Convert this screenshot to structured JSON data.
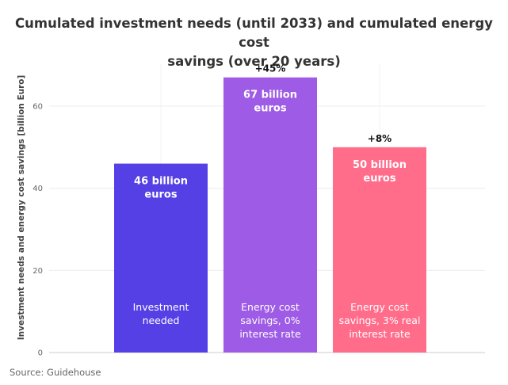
{
  "title_lines": [
    "Cumulated investment needs (until 2033) and cumulated energy cost",
    "savings (over 20 years)"
  ],
  "source": "Source: Guidehouse",
  "chart_data": {
    "type": "bar",
    "title": "Cumulated investment needs (until 2033) and cumulated energy cost savings (over 20 years)",
    "xlabel": "",
    "ylabel": "Investment needs and energy cost savings [billion Euro]",
    "ylim": [
      0,
      70
    ],
    "yticks": [
      0,
      20,
      40,
      60
    ],
    "grid": true,
    "categories": [
      [
        "Investment",
        "needed"
      ],
      [
        "Energy cost",
        "savings, 0%",
        "interest rate"
      ],
      [
        "Energy cost",
        "savings, 3% real",
        "interest rate"
      ]
    ],
    "values": [
      46,
      67,
      50
    ],
    "value_labels": [
      [
        "46 billion",
        "euros"
      ],
      [
        "67 billion",
        "euros"
      ],
      [
        "50 billion",
        "euros"
      ]
    ],
    "annotations": [
      "",
      "+45%",
      "+8%"
    ],
    "colors": [
      "#5540e6",
      "#9e5be5",
      "#ff6d8b"
    ]
  }
}
